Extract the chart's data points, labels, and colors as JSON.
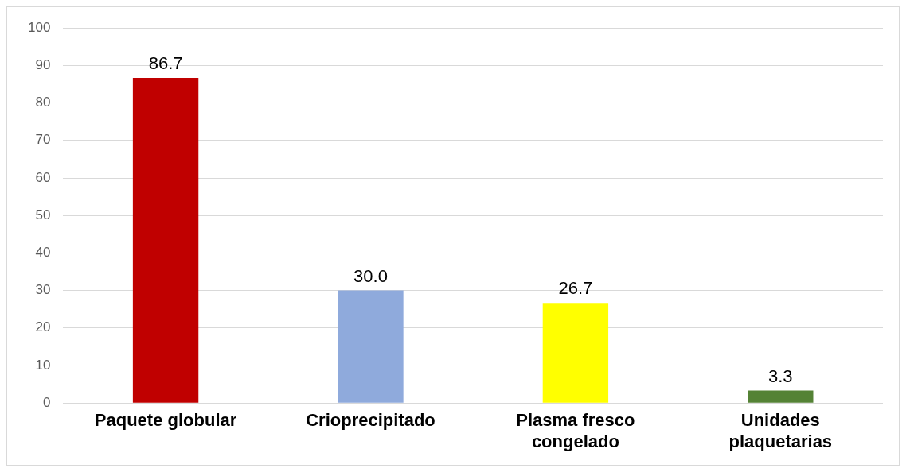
{
  "chart_data": {
    "type": "bar",
    "categories": [
      "Paquete globular",
      "Crioprecipitado",
      "Plasma fresco congelado",
      "Unidades plaquetarias"
    ],
    "values": [
      86.7,
      30.0,
      26.7,
      3.3
    ],
    "value_labels": [
      "86.7",
      "30.0",
      "26.7",
      "3.3"
    ],
    "colors": [
      "#c00000",
      "#8faadc",
      "#ffff00",
      "#548235"
    ],
    "ylim": [
      0,
      100
    ],
    "yticks": [
      0,
      10,
      20,
      30,
      40,
      50,
      60,
      70,
      80,
      90,
      100
    ],
    "grid": "y"
  }
}
